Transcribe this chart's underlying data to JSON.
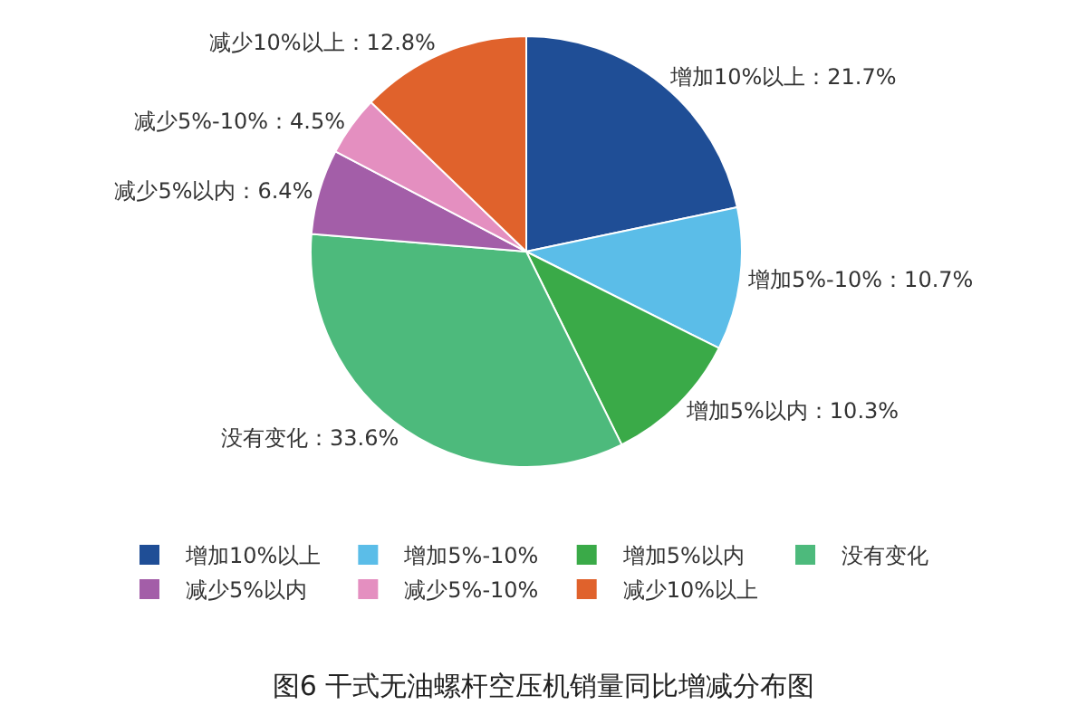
{
  "chart_data": {
    "type": "pie",
    "title": "图6 干式无油螺杆空压机销量同比增减分布图",
    "categories": [
      "增加10%以上",
      "增加5%-10%",
      "增加5%以内",
      "没有变化",
      "减少5%以内",
      "减少5%-10%",
      "减少10%以上"
    ],
    "values": [
      21.7,
      10.7,
      10.3,
      33.6,
      6.4,
      4.5,
      12.8
    ],
    "colors": [
      "#1f4e96",
      "#5bbde8",
      "#3aaa48",
      "#4dba7c",
      "#a35ea8",
      "#e48fc0",
      "#e0622c"
    ],
    "value_labels": [
      "增加10%以上：21.7%",
      "增加5%-10%：10.7%",
      "增加5%以内：10.3%",
      "没有变化：33.6%",
      "减少5%以内：6.4%",
      "减少5%-10%：4.5%",
      "减少10%以上：12.8%"
    ],
    "legend": "bottom"
  }
}
